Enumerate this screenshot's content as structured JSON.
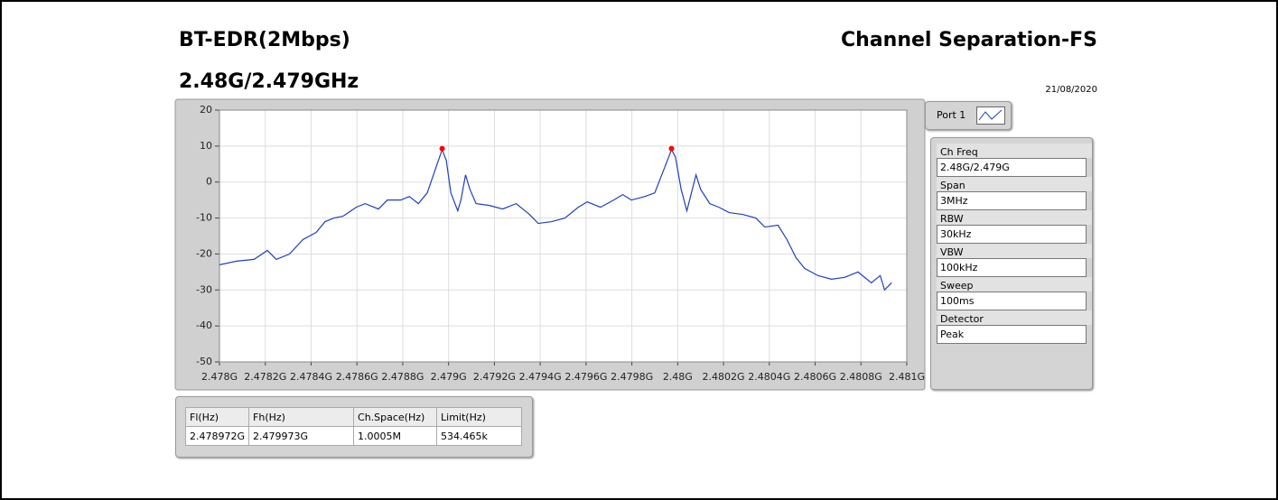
{
  "header": {
    "title": "BT-EDR(2Mbps)",
    "subtitle": "2.48G/2.479GHz",
    "test": "Channel Separation-FS",
    "date": "21/08/2020"
  },
  "chart_data": {
    "type": "line",
    "x": [
      2478000000,
      2478074000,
      2478151000,
      2478209000,
      2478248000,
      2478306000,
      2478364000,
      2478422000,
      2478461000,
      2478500000,
      2478539000,
      2478597000,
      2478636000,
      2478694000,
      2478733000,
      2478791000,
      2478829000,
      2478868000,
      2478907000,
      2478950000,
      2478972000,
      2478990000,
      2479010000,
      2479040000,
      2479054000,
      2479074000,
      2479093000,
      2479120000,
      2479178000,
      2479236000,
      2479295000,
      2479353000,
      2479391000,
      2479450000,
      2479508000,
      2479566000,
      2479605000,
      2479663000,
      2479721000,
      2479760000,
      2479798000,
      2479857000,
      2479900000,
      2479955000,
      2479973000,
      2479990000,
      2480015000,
      2480040000,
      2480060000,
      2480080000,
      2480100000,
      2480140000,
      2480180000,
      2480225000,
      2480283000,
      2480341000,
      2480380000,
      2480438000,
      2480477000,
      2480516000,
      2480554000,
      2480612000,
      2480671000,
      2480729000,
      2480787000,
      2480845000,
      2480884000,
      2480903000,
      2480934000
    ],
    "series": [
      {
        "name": "Port 1",
        "color": "#1f3fbf",
        "values": [
          -23,
          -22,
          -21.5,
          -19,
          -21.5,
          -20,
          -16,
          -14,
          -11,
          -10,
          -9.5,
          -7,
          -6,
          -7.5,
          -5,
          -5,
          -4,
          -6,
          -3,
          5,
          9,
          6,
          -3,
          -8,
          -5,
          2,
          -2,
          -6,
          -6.5,
          -7.5,
          -6,
          -9,
          -11.5,
          -11,
          -10,
          -7,
          -5.5,
          -7,
          -5,
          -3.5,
          -5,
          -4,
          -3,
          6,
          9,
          7,
          -2,
          -8,
          -3,
          2,
          -2,
          -6,
          -7,
          -8.5,
          -9,
          -10,
          -12.5,
          -12,
          -16,
          -21,
          -24,
          -26,
          -27,
          -26.5,
          -25,
          -28,
          -26,
          -30,
          -28
        ]
      }
    ],
    "markers": {
      "color": "#ff0000",
      "x": [
        2478972000,
        2479973000
      ],
      "values": [
        9.3,
        9.3
      ]
    },
    "xlim": [
      2478000000,
      2481000000
    ],
    "xticks": [
      {
        "value": 2478000000,
        "label": "2.478G"
      },
      {
        "value": 2478200000,
        "label": "2.4782G"
      },
      {
        "value": 2478400000,
        "label": "2.4784G"
      },
      {
        "value": 2478600000,
        "label": "2.4786G"
      },
      {
        "value": 2478800000,
        "label": "2.4788G"
      },
      {
        "value": 2479000000,
        "label": "2.479G"
      },
      {
        "value": 2479200000,
        "label": "2.4792G"
      },
      {
        "value": 2479400000,
        "label": "2.4794G"
      },
      {
        "value": 2479600000,
        "label": "2.4796G"
      },
      {
        "value": 2479800000,
        "label": "2.4798G"
      },
      {
        "value": 2480000000,
        "label": "2.48G"
      },
      {
        "value": 2480200000,
        "label": "2.4802G"
      },
      {
        "value": 2480400000,
        "label": "2.4804G"
      },
      {
        "value": 2480600000,
        "label": "2.4806G"
      },
      {
        "value": 2480800000,
        "label": "2.4808G"
      },
      {
        "value": 2481000000,
        "label": "2.481G"
      }
    ],
    "ylim": [
      -50,
      20
    ],
    "yticks": [
      -50,
      -40,
      -30,
      -20,
      -10,
      0,
      10,
      20
    ],
    "grid": true
  },
  "port": "Port 1",
  "settings": [
    {
      "label": "Ch Freq",
      "value": "2.48G/2.479G"
    },
    {
      "label": "Span",
      "value": "3MHz"
    },
    {
      "label": "RBW",
      "value": "30kHz"
    },
    {
      "label": "VBW",
      "value": "100kHz"
    },
    {
      "label": "Sweep",
      "value": "100ms"
    },
    {
      "label": "Detector",
      "value": "Peak"
    }
  ],
  "table": {
    "columns": [
      "Fl(Hz)",
      "Fh(Hz)",
      "Ch.Space(Hz)",
      "Limit(Hz)"
    ],
    "rows": [
      [
        "2.478972G",
        "2.479973G",
        "1.0005M",
        "534.465k"
      ]
    ]
  }
}
